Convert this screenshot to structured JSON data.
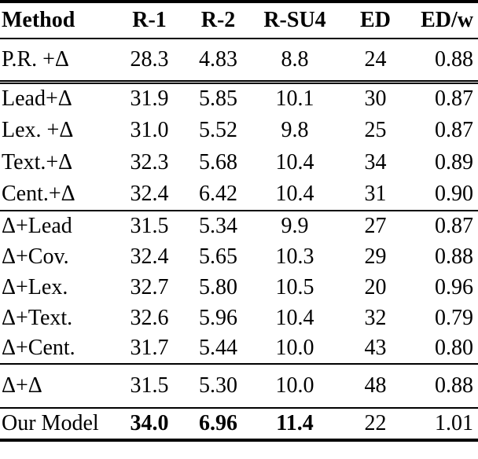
{
  "table": {
    "columns": [
      "Method",
      "R-1",
      "R-2",
      "R-SU4",
      "ED",
      "ED/w"
    ],
    "sections": [
      {
        "rows": [
          {
            "method": "P.R. +Δ",
            "values": [
              "28.3",
              "4.83",
              "8.8",
              "24",
              "0.88"
            ],
            "bold": []
          }
        ]
      },
      {
        "rows": [
          {
            "method": "Lead+Δ",
            "values": [
              "31.9",
              "5.85",
              "10.1",
              "30",
              "0.87"
            ],
            "bold": []
          },
          {
            "method": "Lex. +Δ",
            "values": [
              "31.0",
              "5.52",
              "9.8",
              "25",
              "0.87"
            ],
            "bold": []
          },
          {
            "method": "Text.+Δ",
            "values": [
              "32.3",
              "5.68",
              "10.4",
              "34",
              "0.89"
            ],
            "bold": []
          },
          {
            "method": "Cent.+Δ",
            "values": [
              "32.4",
              "6.42",
              "10.4",
              "31",
              "0.90"
            ],
            "bold": []
          }
        ]
      },
      {
        "rows": [
          {
            "method": "Δ+Lead",
            "values": [
              "31.5",
              "5.34",
              "9.9",
              "27",
              "0.87"
            ],
            "bold": []
          },
          {
            "method": "Δ+Cov.",
            "values": [
              "32.4",
              "5.65",
              "10.3",
              "29",
              "0.88"
            ],
            "bold": []
          },
          {
            "method": "Δ+Lex.",
            "values": [
              "32.7",
              "5.80",
              "10.5",
              "20",
              "0.96"
            ],
            "bold": []
          },
          {
            "method": "Δ+Text.",
            "values": [
              "32.6",
              "5.96",
              "10.4",
              "32",
              "0.79"
            ],
            "bold": []
          },
          {
            "method": "Δ+Cent.",
            "values": [
              "31.7",
              "5.44",
              "10.0",
              "43",
              "0.80"
            ],
            "bold": []
          }
        ]
      },
      {
        "rows": [
          {
            "method": "Δ+Δ",
            "values": [
              "31.5",
              "5.30",
              "10.0",
              "48",
              "0.88"
            ],
            "bold": []
          }
        ]
      },
      {
        "rows": [
          {
            "method": "Our Model",
            "values": [
              "34.0",
              "6.96",
              "11.4",
              "22",
              "1.01"
            ],
            "bold": [
              0,
              1,
              2
            ]
          }
        ]
      }
    ]
  }
}
